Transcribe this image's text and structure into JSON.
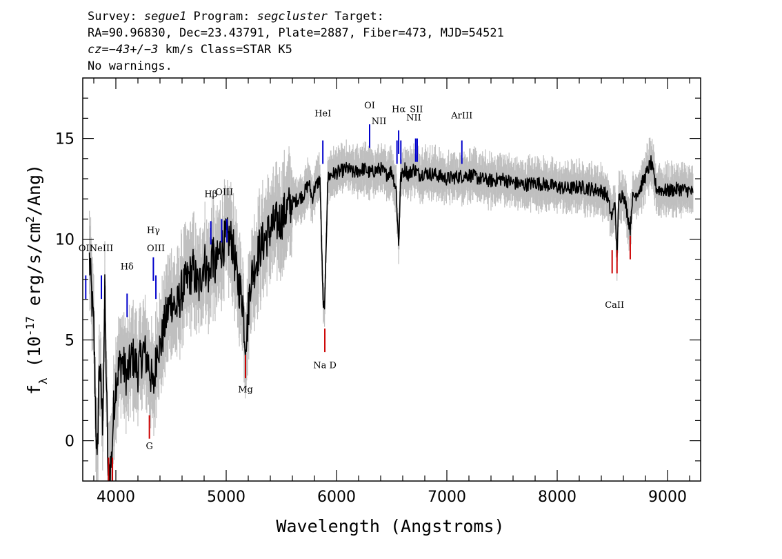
{
  "header": {
    "line1": {
      "p1": "Survey: ",
      "survey": "segue1",
      "p2": " Program: ",
      "program": "segcluster",
      "p3": " Target:"
    },
    "line2": "RA=90.96830, Dec=23.43791, Plate=2887, Fiber=473, MJD=54521",
    "line3": {
      "cz": "cz=−43+/−3",
      "rest": " km/s Class=STAR K5"
    },
    "line4": "No warnings."
  },
  "chart_data": {
    "type": "line",
    "xlabel": "Wavelength (Angstroms)",
    "ylabel": "f_λ (10^-17 erg/s/cm^2/Ang)",
    "xlim": [
      3700,
      9300
    ],
    "ylim": [
      -2,
      18
    ],
    "x_ticks": [
      "4000",
      "5000",
      "6000",
      "7000",
      "8000",
      "9000"
    ],
    "y_ticks": [
      "0",
      "5",
      "10",
      "15"
    ],
    "colors": {
      "flux": "#000000",
      "error": "#bfbfbf",
      "emission": "#0000cc",
      "absorption": "#cc0000"
    },
    "series": [
      {
        "points": [
          [
            3760,
            9.0
          ],
          [
            3800,
            5.5
          ],
          [
            3830,
            -1.5
          ],
          [
            3850,
            4.0
          ],
          [
            3880,
            1.0
          ],
          [
            3900,
            7.2
          ],
          [
            3930,
            -1.8
          ],
          [
            3960,
            -1.0
          ],
          [
            3980,
            1.5
          ],
          [
            4000,
            3.0
          ],
          [
            4050,
            4.0
          ],
          [
            4100,
            3.2
          ],
          [
            4150,
            4.2
          ],
          [
            4200,
            3.5
          ],
          [
            4250,
            4.5
          ],
          [
            4300,
            3.8
          ],
          [
            4340,
            2.5
          ],
          [
            4380,
            5.0
          ],
          [
            4400,
            4.5
          ],
          [
            4450,
            6.0
          ],
          [
            4500,
            7.0
          ],
          [
            4550,
            6.5
          ],
          [
            4600,
            7.5
          ],
          [
            4650,
            8.0
          ],
          [
            4700,
            8.5
          ],
          [
            4750,
            7.5
          ],
          [
            4800,
            9.0
          ],
          [
            4850,
            8.0
          ],
          [
            4870,
            9.5
          ],
          [
            4900,
            8.5
          ],
          [
            4950,
            9.5
          ],
          [
            5000,
            10.0
          ],
          [
            5050,
            10.0
          ],
          [
            5100,
            8.0
          ],
          [
            5150,
            7.0
          ],
          [
            5170,
            5.0
          ],
          [
            5190,
            5.5
          ],
          [
            5220,
            8.0
          ],
          [
            5250,
            8.5
          ],
          [
            5300,
            9.5
          ],
          [
            5350,
            10.0
          ],
          [
            5400,
            10.5
          ],
          [
            5450,
            10.8
          ],
          [
            5500,
            11.0
          ],
          [
            5550,
            11.5
          ],
          [
            5600,
            11.8
          ],
          [
            5650,
            12.0
          ],
          [
            5700,
            12.2
          ],
          [
            5750,
            12.8
          ],
          [
            5780,
            12.0
          ],
          [
            5800,
            12.5
          ],
          [
            5850,
            13.0
          ],
          [
            5880,
            6.5
          ],
          [
            5895,
            7.0
          ],
          [
            5920,
            13.0
          ],
          [
            5950,
            13.2
          ],
          [
            6000,
            13.3
          ],
          [
            6050,
            13.4
          ],
          [
            6100,
            13.5
          ],
          [
            6150,
            13.3
          ],
          [
            6200,
            13.4
          ],
          [
            6250,
            13.5
          ],
          [
            6300,
            13.3
          ],
          [
            6350,
            13.4
          ],
          [
            6400,
            13.5
          ],
          [
            6450,
            13.2
          ],
          [
            6500,
            13.4
          ],
          [
            6540,
            12.5
          ],
          [
            6563,
            9.7
          ],
          [
            6580,
            13.0
          ],
          [
            6620,
            13.5
          ],
          [
            6650,
            13.2
          ],
          [
            6700,
            13.5
          ],
          [
            6750,
            13.2
          ],
          [
            6800,
            13.3
          ],
          [
            6900,
            13.2
          ],
          [
            7000,
            13.0
          ],
          [
            7100,
            13.1
          ],
          [
            7200,
            13.2
          ],
          [
            7300,
            13.0
          ],
          [
            7400,
            12.9
          ],
          [
            7500,
            13.0
          ],
          [
            7600,
            12.8
          ],
          [
            7700,
            12.7
          ],
          [
            7800,
            12.8
          ],
          [
            7900,
            12.7
          ],
          [
            8000,
            12.6
          ],
          [
            8100,
            12.5
          ],
          [
            8200,
            12.6
          ],
          [
            8300,
            12.5
          ],
          [
            8400,
            12.4
          ],
          [
            8450,
            12.2
          ],
          [
            8498,
            11.0
          ],
          [
            8520,
            12.0
          ],
          [
            8542,
            9.3
          ],
          [
            8560,
            12.0
          ],
          [
            8600,
            12.3
          ],
          [
            8662,
            10.5
          ],
          [
            8680,
            12.0
          ],
          [
            8750,
            12.5
          ],
          [
            8850,
            13.8
          ],
          [
            8900,
            12.5
          ],
          [
            9000,
            12.4
          ],
          [
            9100,
            12.5
          ],
          [
            9200,
            12.4
          ],
          [
            9230,
            12.3
          ]
        ]
      }
    ],
    "lines": [
      {
        "label": "OII",
        "x": 3727,
        "y": 8.2,
        "color": "emission"
      },
      {
        "label": "NeIII",
        "x": 3869,
        "y": 8.2,
        "color": "emission"
      },
      {
        "label": "Hδ",
        "x": 4102,
        "y": 7.3,
        "color": "emission"
      },
      {
        "label": "Hγ",
        "x": 4340,
        "y": 9.1,
        "color": "emission"
      },
      {
        "label": "OIII",
        "x": 4363,
        "y": 8.2,
        "color": "emission"
      },
      {
        "label": "Hβ",
        "x": 4861,
        "y": 10.9,
        "color": "emission"
      },
      {
        "label": "OIII",
        "x": 4959,
        "y": 11.0,
        "color": "emission"
      },
      {
        "label": "OIII",
        "x": 5007,
        "y": 11.0,
        "color": "emission"
      },
      {
        "label": "HeI",
        "x": 5876,
        "y": 14.9,
        "color": "emission"
      },
      {
        "label": "OI",
        "x": 6300,
        "y": 15.7,
        "color": "emission"
      },
      {
        "label": "NII",
        "x": 6548,
        "y": 14.9,
        "color": "emission"
      },
      {
        "label": "Hα",
        "x": 6563,
        "y": 15.4,
        "color": "emission"
      },
      {
        "label": "NII",
        "x": 6583,
        "y": 14.9,
        "color": "emission"
      },
      {
        "label": "SII",
        "x": 6717,
        "y": 15.0,
        "color": "emission"
      },
      {
        "label": "SII",
        "x": 6731,
        "y": 15.0,
        "color": "emission"
      },
      {
        "label": "ArIII",
        "x": 7136,
        "y": 14.9,
        "color": "emission"
      },
      {
        "label": "CaII",
        "x": 3934,
        "y": -2.0,
        "color": "absorption"
      },
      {
        "label": "CaII",
        "x": 3969,
        "y": -2.0,
        "color": "absorption"
      },
      {
        "label": "G",
        "x": 4304,
        "y": 0.1,
        "color": "absorption"
      },
      {
        "label": "Mg",
        "x": 5175,
        "y": 3.1,
        "color": "absorption"
      },
      {
        "label": "Na D",
        "x": 5894,
        "y": 4.4,
        "color": "absorption"
      },
      {
        "label": "CaII",
        "x": 8498,
        "y": 8.3,
        "color": "absorption"
      },
      {
        "label": "CaII",
        "x": 8542,
        "y": 8.3,
        "color": "absorption"
      },
      {
        "label": "CaII",
        "x": 8662,
        "y": 9.0,
        "color": "absorption"
      }
    ],
    "line_label_text": [
      {
        "text": "OII",
        "x": 3727,
        "y": 9.4
      },
      {
        "text": "NeIII",
        "x": 3869,
        "y": 9.4
      },
      {
        "text": "Hδ",
        "x": 4102,
        "y": 8.5
      },
      {
        "text": "Hγ",
        "x": 4340,
        "y": 10.3
      },
      {
        "text": "OIII",
        "x": 4363,
        "y": 9.4
      },
      {
        "text": "Hβ",
        "x": 4861,
        "y": 12.1
      },
      {
        "text": "OIII",
        "x": 4983,
        "y": 12.2
      },
      {
        "text": "HeI",
        "x": 5876,
        "y": 16.1
      },
      {
        "text": "OI",
        "x": 6300,
        "y": 16.5
      },
      {
        "text": "NII",
        "x": 6385,
        "y": 15.7
      },
      {
        "text": "Hα",
        "x": 6563,
        "y": 16.3
      },
      {
        "text": "SII",
        "x": 6724,
        "y": 16.3
      },
      {
        "text": "NII",
        "x": 6700,
        "y": 15.9
      },
      {
        "text": "ArIII",
        "x": 7136,
        "y": 16.0
      },
      {
        "text": "G",
        "x": 4304,
        "y": -0.4
      },
      {
        "text": "Mg",
        "x": 5175,
        "y": 2.4
      },
      {
        "text": "Na  D",
        "x": 5894,
        "y": 3.6
      },
      {
        "text": "CaII",
        "x": 8520,
        "y": 6.6
      }
    ]
  }
}
